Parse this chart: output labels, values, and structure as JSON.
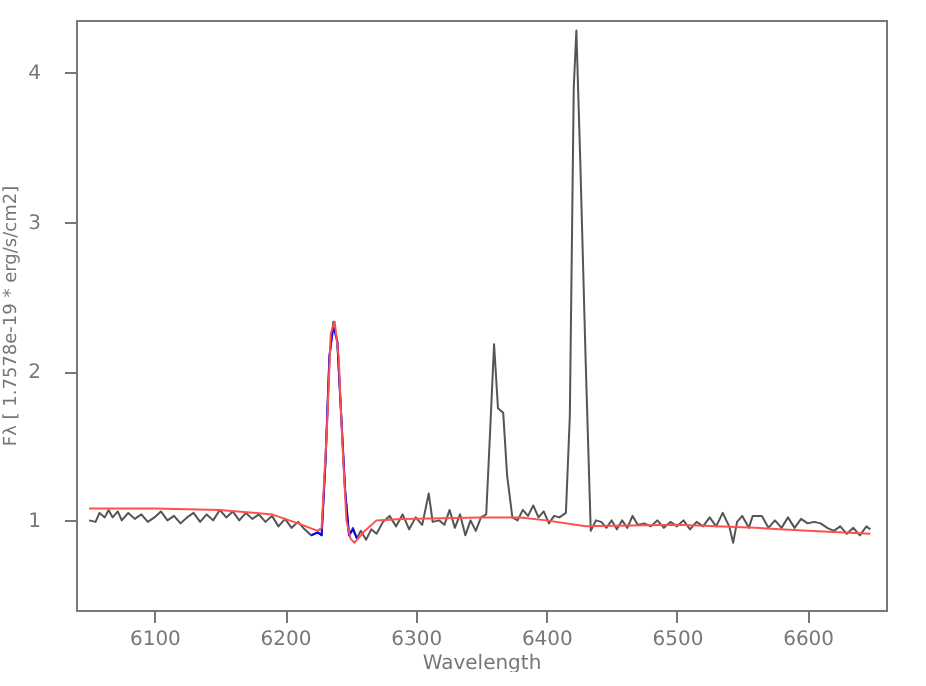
{
  "chart_data": {
    "type": "line",
    "xlabel": "Wavelength",
    "ylabel": "Fλ [ 1.7578e-19 * erg/s/cm2]",
    "xlim": [
      6040,
      6660
    ],
    "xticks": [
      6100,
      6200,
      6300,
      6400,
      6500,
      6600
    ],
    "ylim": [
      0.4,
      4.35
    ],
    "yticks": [
      1,
      2,
      3,
      4
    ],
    "grid": false,
    "marker": "none",
    "line_style": "solid",
    "series": [
      {
        "color": "#555555",
        "x": [
          6050,
          6055,
          6058,
          6062,
          6065,
          6068,
          6072,
          6075,
          6080,
          6085,
          6090,
          6095,
          6100,
          6105,
          6110,
          6115,
          6120,
          6125,
          6130,
          6135,
          6140,
          6145,
          6150,
          6155,
          6160,
          6165,
          6170,
          6175,
          6180,
          6185,
          6190,
          6195,
          6200,
          6205,
          6210,
          6215,
          6220,
          6225,
          6228,
          6231,
          6234,
          6237,
          6240,
          6243,
          6246,
          6249,
          6252,
          6255,
          6258,
          6262,
          6266,
          6270,
          6275,
          6280,
          6285,
          6290,
          6295,
          6300,
          6305,
          6310,
          6313,
          6318,
          6322,
          6326,
          6330,
          6334,
          6338,
          6342,
          6346,
          6350,
          6354,
          6357,
          6360,
          6363,
          6367,
          6370,
          6374,
          6378,
          6382,
          6386,
          6390,
          6394,
          6398,
          6402,
          6406,
          6410,
          6415,
          6418,
          6421,
          6423,
          6426,
          6430,
          6434,
          6438,
          6442,
          6446,
          6450,
          6454,
          6458,
          6462,
          6466,
          6470,
          6475,
          6480,
          6485,
          6490,
          6495,
          6500,
          6505,
          6510,
          6515,
          6520,
          6525,
          6530,
          6535,
          6540,
          6543,
          6546,
          6550,
          6555,
          6558,
          6565,
          6570,
          6575,
          6580,
          6585,
          6590,
          6595,
          6600,
          6605,
          6610,
          6615,
          6620,
          6625,
          6630,
          6635,
          6640,
          6645,
          6648
        ],
        "values": [
          1.0,
          0.99,
          1.05,
          1.02,
          1.07,
          1.02,
          1.06,
          1.0,
          1.05,
          1.01,
          1.04,
          0.99,
          1.02,
          1.06,
          1.0,
          1.03,
          0.98,
          1.02,
          1.05,
          0.99,
          1.04,
          1.0,
          1.07,
          1.02,
          1.06,
          1.0,
          1.05,
          1.01,
          1.04,
          0.99,
          1.03,
          0.96,
          1.01,
          0.95,
          0.99,
          0.94,
          0.9,
          0.92,
          0.9,
          1.4,
          2.1,
          2.33,
          2.2,
          1.7,
          1.2,
          0.9,
          0.95,
          0.88,
          0.93,
          0.87,
          0.94,
          0.91,
          0.99,
          1.03,
          0.96,
          1.04,
          0.94,
          1.02,
          0.97,
          1.18,
          0.99,
          1.0,
          0.97,
          1.07,
          0.95,
          1.04,
          0.9,
          1.0,
          0.93,
          1.02,
          1.04,
          1.6,
          2.18,
          1.75,
          1.72,
          1.3,
          1.02,
          1.0,
          1.07,
          1.03,
          1.1,
          1.02,
          1.06,
          0.98,
          1.03,
          1.02,
          1.05,
          1.7,
          3.9,
          4.28,
          3.4,
          2.1,
          0.93,
          1.0,
          0.99,
          0.95,
          1.0,
          0.94,
          1.0,
          0.95,
          1.03,
          0.97,
          0.98,
          0.96,
          1.0,
          0.95,
          0.99,
          0.96,
          1.0,
          0.94,
          0.99,
          0.96,
          1.02,
          0.96,
          1.05,
          0.96,
          0.85,
          0.99,
          1.03,
          0.95,
          1.03,
          1.03,
          0.95,
          1.0,
          0.95,
          1.02,
          0.95,
          1.01,
          0.98,
          0.99,
          0.98,
          0.95,
          0.93,
          0.96,
          0.91,
          0.95,
          0.9,
          0.96,
          0.94
        ]
      },
      {
        "color": "#0000ff",
        "x": [
          6220,
          6225,
          6228,
          6231,
          6234,
          6237,
          6240,
          6243,
          6246,
          6249,
          6252,
          6255
        ],
        "values": [
          0.9,
          0.92,
          0.9,
          1.4,
          2.1,
          2.3,
          2.2,
          1.7,
          1.2,
          0.9,
          0.94,
          0.88
        ]
      },
      {
        "color": "#ff5050",
        "x": [
          6050,
          6100,
          6150,
          6190,
          6210,
          6225,
          6228,
          6232,
          6235,
          6238,
          6241,
          6244,
          6247,
          6250,
          6253,
          6260,
          6270,
          6290,
          6350,
          6380,
          6400,
          6430,
          6500,
          6560,
          6600,
          6648
        ],
        "values": [
          1.08,
          1.08,
          1.07,
          1.04,
          0.98,
          0.93,
          0.95,
          1.6,
          2.25,
          2.33,
          2.1,
          1.5,
          1.0,
          0.88,
          0.85,
          0.92,
          1.0,
          1.01,
          1.02,
          1.02,
          1.0,
          0.96,
          0.97,
          0.95,
          0.93,
          0.91
        ]
      }
    ]
  }
}
